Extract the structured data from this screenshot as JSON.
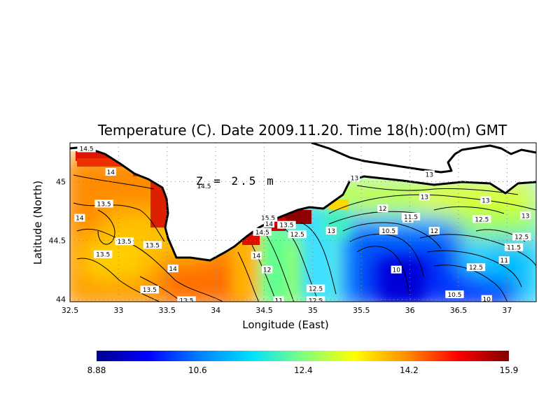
{
  "title": "Temperature (C). Date 2009.11.20. Time 18(h):00(m) GMT",
  "depth_label": "Z = 2.5 m",
  "xlabel": "Longitude (East)",
  "ylabel": "Latitude (North)",
  "colors": {
    "land": "#ffffff",
    "coast": "#000000",
    "grid": "#888888",
    "colormap": [
      "#00008c",
      "#0000ff",
      "#0080ff",
      "#00e0ff",
      "#80ff80",
      "#ffff00",
      "#ff9000",
      "#ff0000",
      "#800000"
    ]
  },
  "chart_data": {
    "type": "heatmap",
    "x_ticks": [
      "32.5",
      "33",
      "33.5",
      "34",
      "34.5",
      "35",
      "35.5",
      "36",
      "36.5",
      "37"
    ],
    "y_ticks": [
      "44",
      "44.5",
      "45"
    ],
    "xlim": [
      32.5,
      37.3
    ],
    "ylim": [
      43.98,
      45.33
    ],
    "colorbar": {
      "range": [
        8.88,
        15.9
      ],
      "tick_labels": [
        "8.88",
        "10.6",
        "12.4",
        "14.2",
        "15.9"
      ]
    },
    "contour_labels": [
      {
        "text": "14.5",
        "lon": 32.67,
        "lat": 45.28
      },
      {
        "text": "14",
        "lon": 32.92,
        "lat": 45.08
      },
      {
        "text": "14.5",
        "lon": 33.88,
        "lat": 44.96
      },
      {
        "text": "13.5",
        "lon": 32.85,
        "lat": 44.81
      },
      {
        "text": "14",
        "lon": 32.6,
        "lat": 44.69
      },
      {
        "text": "13.5",
        "lon": 33.06,
        "lat": 44.49
      },
      {
        "text": "13.5",
        "lon": 33.35,
        "lat": 44.46
      },
      {
        "text": "13.5",
        "lon": 32.84,
        "lat": 44.38
      },
      {
        "text": "14",
        "lon": 33.56,
        "lat": 44.26
      },
      {
        "text": "13.5",
        "lon": 33.32,
        "lat": 44.08
      },
      {
        "text": "13.5",
        "lon": 33.7,
        "lat": 43.99
      },
      {
        "text": "14",
        "lon": 34.42,
        "lat": 44.37
      },
      {
        "text": "12",
        "lon": 34.53,
        "lat": 44.25
      },
      {
        "text": "15.5",
        "lon": 34.54,
        "lat": 44.69
      },
      {
        "text": "14",
        "lon": 34.55,
        "lat": 44.64
      },
      {
        "text": "13.5",
        "lon": 34.73,
        "lat": 44.63
      },
      {
        "text": "14.5",
        "lon": 34.48,
        "lat": 44.57
      },
      {
        "text": "12.5",
        "lon": 34.84,
        "lat": 44.55
      },
      {
        "text": "13",
        "lon": 35.19,
        "lat": 44.58
      },
      {
        "text": "13",
        "lon": 35.43,
        "lat": 45.03
      },
      {
        "text": "13",
        "lon": 36.2,
        "lat": 45.06
      },
      {
        "text": "13",
        "lon": 36.15,
        "lat": 44.87
      },
      {
        "text": "13",
        "lon": 36.78,
        "lat": 44.84
      },
      {
        "text": "12",
        "lon": 35.72,
        "lat": 44.77
      },
      {
        "text": "11",
        "lon": 35.98,
        "lat": 44.68
      },
      {
        "text": "11.5",
        "lon": 36.01,
        "lat": 44.7
      },
      {
        "text": "10.5",
        "lon": 35.78,
        "lat": 44.58
      },
      {
        "text": "12",
        "lon": 36.25,
        "lat": 44.58
      },
      {
        "text": "12.5",
        "lon": 36.74,
        "lat": 44.68
      },
      {
        "text": "13",
        "lon": 37.19,
        "lat": 44.71
      },
      {
        "text": "12.5",
        "lon": 37.15,
        "lat": 44.53
      },
      {
        "text": "11.5",
        "lon": 37.07,
        "lat": 44.44
      },
      {
        "text": "10",
        "lon": 35.86,
        "lat": 44.25
      },
      {
        "text": "12.5",
        "lon": 36.68,
        "lat": 44.27
      },
      {
        "text": "11",
        "lon": 36.97,
        "lat": 44.33
      },
      {
        "text": "12.5",
        "lon": 35.03,
        "lat": 44.09
      },
      {
        "text": "11",
        "lon": 34.65,
        "lat": 43.99
      },
      {
        "text": "12.5",
        "lon": 35.03,
        "lat": 43.99
      },
      {
        "text": "10.5",
        "lon": 36.46,
        "lat": 44.04
      },
      {
        "text": "10",
        "lon": 36.79,
        "lat": 44.0
      }
    ]
  }
}
